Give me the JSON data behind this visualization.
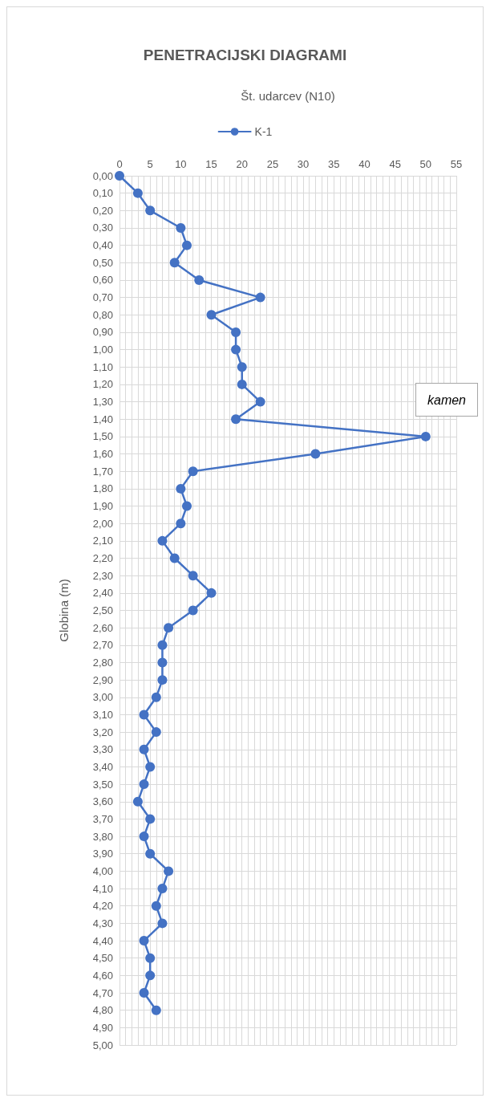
{
  "chart_data": {
    "type": "line",
    "title": "PENETRACIJSKI DIAGRAMI",
    "xlabel": "Št. udarcev (N10)",
    "ylabel": "Globina (m)",
    "orientation": "horizontal",
    "legend": "top",
    "grid": true,
    "marker": "circle",
    "line_style": "solid",
    "annotations": [
      "kamen"
    ],
    "x": [
      0,
      0.1,
      0.2,
      0.3,
      0.4,
      0.5,
      0.6,
      0.7,
      0.8,
      0.9,
      1.0,
      1.1,
      1.2,
      1.3,
      1.4,
      1.5,
      1.6,
      1.7,
      1.8,
      1.9,
      2.0,
      2.1,
      2.2,
      2.3,
      2.4,
      2.5,
      2.6,
      2.7,
      2.8,
      2.9,
      3.0,
      3.1,
      3.2,
      3.3,
      3.4,
      3.5,
      3.6,
      3.7,
      3.8,
      3.9,
      4.0,
      4.1,
      4.2,
      4.3,
      4.4,
      4.5,
      4.6,
      4.7,
      4.8
    ],
    "series": [
      {
        "name": "K-1",
        "color": "#4472c4",
        "values": [
          0,
          3,
          5,
          10,
          11,
          9,
          13,
          23,
          15,
          19,
          19,
          20,
          20,
          23,
          19,
          50,
          32,
          12,
          10,
          11,
          10,
          7,
          9,
          12,
          15,
          12,
          8,
          7,
          7,
          7,
          6,
          4,
          6,
          4,
          5,
          4,
          3,
          5,
          4,
          5,
          8,
          7,
          6,
          7,
          4,
          5,
          5,
          4,
          6
        ]
      }
    ],
    "xlim": [
      0,
      55
    ],
    "xticks": [
      0,
      {
        "value": 1,
        "label": null
      },
      {
        "value": 2,
        "label": null
      },
      {
        "value": 3,
        "label": null
      },
      {
        "value": 4,
        "label": null
      },
      5,
      {
        "value": 6,
        "label": null
      },
      {
        "value": 7,
        "label": null
      },
      {
        "value": 8,
        "label": null
      },
      {
        "value": 9,
        "label": null
      },
      10,
      {
        "value": 11,
        "label": null
      },
      {
        "value": 12,
        "label": null
      },
      {
        "value": 13,
        "label": null
      },
      {
        "value": 14,
        "label": null
      },
      15,
      {
        "value": 16,
        "label": null
      },
      {
        "value": 17,
        "label": null
      },
      {
        "value": 18,
        "label": null
      },
      {
        "value": 19,
        "label": null
      },
      20,
      {
        "value": 21,
        "label": null
      },
      {
        "value": 22,
        "label": null
      },
      {
        "value": 23,
        "label": null
      },
      {
        "value": 24,
        "label": null
      },
      25,
      {
        "value": 26,
        "label": null
      },
      {
        "value": 27,
        "label": null
      },
      {
        "value": 28,
        "label": null
      },
      {
        "value": 29,
        "label": null
      },
      30,
      {
        "value": 31,
        "label": null
      },
      {
        "value": 32,
        "label": null
      },
      {
        "value": 33,
        "label": null
      },
      {
        "value": 34,
        "label": null
      },
      35,
      {
        "value": 36,
        "label": null
      },
      {
        "value": 37,
        "label": null
      },
      {
        "value": 38,
        "label": null
      },
      {
        "value": 39,
        "label": null
      },
      40,
      {
        "value": 41,
        "label": null
      },
      {
        "value": 42,
        "label": null
      },
      {
        "value": 43,
        "label": null
      },
      {
        "value": 44,
        "label": null
      },
      45,
      {
        "value": 46,
        "label": null
      },
      {
        "value": 47,
        "label": null
      },
      {
        "value": 48,
        "label": null
      },
      {
        "value": 49,
        "label": null
      },
      50,
      {
        "value": 51,
        "label": null
      },
      {
        "value": 52,
        "label": null
      },
      {
        "value": 53,
        "label": null
      },
      {
        "value": 54,
        "label": null
      },
      55
    ],
    "ylim": [
      5,
      0
    ],
    "yticks": [
      {
        "value": 0,
        "label": "0,00"
      },
      {
        "value": 0.1,
        "label": "0,10"
      },
      {
        "value": 0.2,
        "label": "0,20"
      },
      {
        "value": 0.3,
        "label": "0,30"
      },
      {
        "value": 0.4,
        "label": "0,40"
      },
      {
        "value": 0.5,
        "label": "0,50"
      },
      {
        "value": 0.6,
        "label": "0,60"
      },
      {
        "value": 0.7,
        "label": "0,70"
      },
      {
        "value": 0.8,
        "label": "0,80"
      },
      {
        "value": 0.9,
        "label": "0,90"
      },
      {
        "value": 1.0,
        "label": "1,00"
      },
      {
        "value": 1.1,
        "label": "1,10"
      },
      {
        "value": 1.2,
        "label": "1,20"
      },
      {
        "value": 1.3,
        "label": "1,30"
      },
      {
        "value": 1.4,
        "label": "1,40"
      },
      {
        "value": 1.5,
        "label": "1,50"
      },
      {
        "value": 1.6,
        "label": "1,60"
      },
      {
        "value": 1.7,
        "label": "1,70"
      },
      {
        "value": 1.8,
        "label": "1,80"
      },
      {
        "value": 1.9,
        "label": "1,90"
      },
      {
        "value": 2.0,
        "label": "2,00"
      },
      {
        "value": 2.1,
        "label": "2,10"
      },
      {
        "value": 2.2,
        "label": "2,20"
      },
      {
        "value": 2.3,
        "label": "2,30"
      },
      {
        "value": 2.4,
        "label": "2,40"
      },
      {
        "value": 2.5,
        "label": "2,50"
      },
      {
        "value": 2.6,
        "label": "2,60"
      },
      {
        "value": 2.7,
        "label": "2,70"
      },
      {
        "value": 2.8,
        "label": "2,80"
      },
      {
        "value": 2.9,
        "label": "2,90"
      },
      {
        "value": 3.0,
        "label": "3,00"
      },
      {
        "value": 3.1,
        "label": "3,10"
      },
      {
        "value": 3.2,
        "label": "3,20"
      },
      {
        "value": 3.3,
        "label": "3,30"
      },
      {
        "value": 3.4,
        "label": "3,40"
      },
      {
        "value": 3.5,
        "label": "3,50"
      },
      {
        "value": 3.6,
        "label": "3,60"
      },
      {
        "value": 3.7,
        "label": "3,70"
      },
      {
        "value": 3.8,
        "label": "3,80"
      },
      {
        "value": 3.9,
        "label": "3,90"
      },
      {
        "value": 4.0,
        "label": "4,00"
      },
      {
        "value": 4.1,
        "label": "4,10"
      },
      {
        "value": 4.2,
        "label": "4,20"
      },
      {
        "value": 4.3,
        "label": "4,30"
      },
      {
        "value": 4.4,
        "label": "4,40"
      },
      {
        "value": 4.5,
        "label": "4,50"
      },
      {
        "value": 4.6,
        "label": "4,60"
      },
      {
        "value": 4.7,
        "label": "4,70"
      },
      {
        "value": 4.8,
        "label": "4,80"
      },
      {
        "value": 4.9,
        "label": "4,90"
      },
      {
        "value": 5.0,
        "label": "5,00"
      }
    ]
  }
}
